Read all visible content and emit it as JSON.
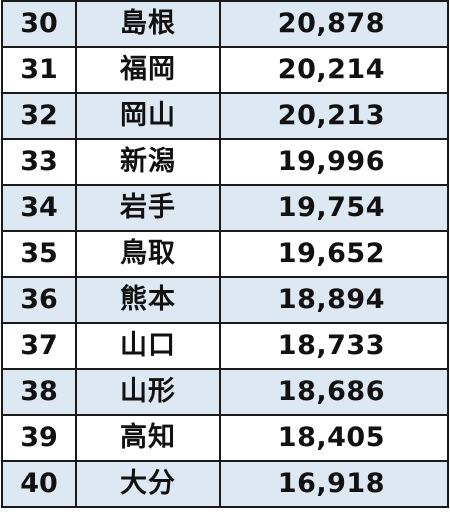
{
  "table": {
    "rows": [
      {
        "rank": "30",
        "prefecture": "島根",
        "value": "20,878"
      },
      {
        "rank": "31",
        "prefecture": "福岡",
        "value": "20,214"
      },
      {
        "rank": "32",
        "prefecture": "岡山",
        "value": "20,213"
      },
      {
        "rank": "33",
        "prefecture": "新潟",
        "value": "19,996"
      },
      {
        "rank": "34",
        "prefecture": "岩手",
        "value": "19,754"
      },
      {
        "rank": "35",
        "prefecture": "鳥取",
        "value": "19,652"
      },
      {
        "rank": "36",
        "prefecture": "熊本",
        "value": "18,894"
      },
      {
        "rank": "37",
        "prefecture": "山口",
        "value": "18,733"
      },
      {
        "rank": "38",
        "prefecture": "山形",
        "value": "18,686"
      },
      {
        "rank": "39",
        "prefecture": "高知",
        "value": "18,405"
      },
      {
        "rank": "40",
        "prefecture": "大分",
        "value": "16,918"
      }
    ]
  },
  "colors": {
    "shaded_row": "#dde8f3",
    "plain_row": "#ffffff",
    "border": "#1a1a1a",
    "text": "#111111"
  }
}
